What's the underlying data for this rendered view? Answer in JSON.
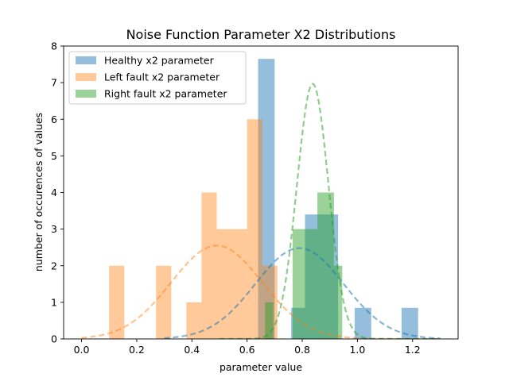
{
  "chart_data": {
    "type": "bar",
    "title": "Noise Function Parameter X2 Distributions",
    "xlabel": "parameter value",
    "ylabel": "number of occurences of values",
    "xlim": [
      -0.065,
      1.365
    ],
    "ylim": [
      0,
      8
    ],
    "xticks": [
      "0.0",
      "0.2",
      "0.4",
      "0.6",
      "0.8",
      "1.0",
      "1.2"
    ],
    "xtick_values": [
      0.0,
      0.2,
      0.4,
      0.6,
      0.8,
      1.0,
      1.2
    ],
    "yticks": [
      "0",
      "1",
      "2",
      "3",
      "4",
      "5",
      "6",
      "7",
      "8"
    ],
    "ytick_values": [
      0,
      1,
      2,
      3,
      4,
      5,
      6,
      7,
      8
    ],
    "grid": false,
    "legend_position": "top-left",
    "series": [
      {
        "name": "Healthy x2 parameter",
        "color": "#1f77b4",
        "opacity": 0.48,
        "bins": [
          {
            "x0": 0.64,
            "x1": 0.7,
            "y": 7.65
          },
          {
            "x0": 0.76,
            "x1": 0.81,
            "y": 0.85
          },
          {
            "x0": 0.81,
            "x1": 0.87,
            "y": 3.4
          },
          {
            "x0": 0.87,
            "x1": 0.93,
            "y": 3.4
          },
          {
            "x0": 0.99,
            "x1": 1.05,
            "y": 0.85
          },
          {
            "x0": 1.16,
            "x1": 1.22,
            "y": 0.85
          }
        ],
        "curve": {
          "mean": 0.79,
          "std": 0.16,
          "peak": 2.48,
          "from": 0.3,
          "to": 1.3
        }
      },
      {
        "name": "Left fault x2 parameter",
        "color": "#ff7f0e",
        "opacity": 0.42,
        "bins": [
          {
            "x0": 0.1,
            "x1": 0.155,
            "y": 2
          },
          {
            "x0": 0.27,
            "x1": 0.325,
            "y": 2
          },
          {
            "x0": 0.38,
            "x1": 0.435,
            "y": 1
          },
          {
            "x0": 0.435,
            "x1": 0.49,
            "y": 4
          },
          {
            "x0": 0.49,
            "x1": 0.545,
            "y": 3
          },
          {
            "x0": 0.545,
            "x1": 0.6,
            "y": 3
          },
          {
            "x0": 0.6,
            "x1": 0.655,
            "y": 6
          },
          {
            "x0": 0.655,
            "x1": 0.71,
            "y": 2
          }
        ],
        "curve": {
          "mean": 0.49,
          "std": 0.165,
          "peak": 2.55,
          "from": 0.0,
          "to": 1.3
        }
      },
      {
        "name": "Right fault x2 parameter",
        "color": "#2ca02c",
        "opacity": 0.48,
        "bins": [
          {
            "x0": 0.665,
            "x1": 0.695,
            "y": 1
          },
          {
            "x0": 0.765,
            "x1": 0.795,
            "y": 3
          },
          {
            "x0": 0.795,
            "x1": 0.825,
            "y": 3
          },
          {
            "x0": 0.825,
            "x1": 0.855,
            "y": 3
          },
          {
            "x0": 0.855,
            "x1": 0.885,
            "y": 4
          },
          {
            "x0": 0.885,
            "x1": 0.915,
            "y": 4
          },
          {
            "x0": 0.915,
            "x1": 0.945,
            "y": 2
          }
        ],
        "curve": {
          "mean": 0.838,
          "std": 0.057,
          "peak": 6.97,
          "from": 0.5,
          "to": 1.3
        }
      }
    ]
  }
}
